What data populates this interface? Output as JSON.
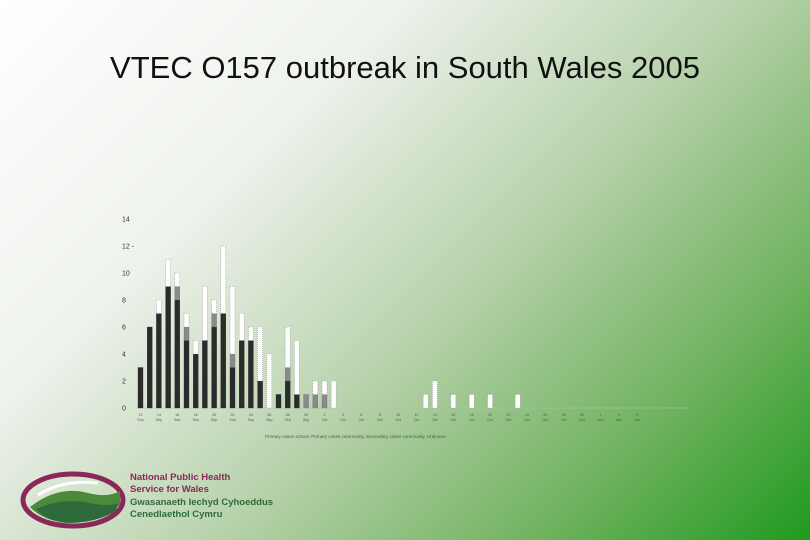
{
  "title": "VTEC O157 outbreak in South Wales 2005",
  "colors": {
    "primary": "#2b2b2b",
    "community": "#8a8a8a",
    "secondary": "#ffffff",
    "logo_maroon": "#8a2858",
    "logo_green": "#2f6b3a"
  },
  "chart_data": {
    "type": "bar",
    "stacked": true,
    "title": "",
    "xlabel": "",
    "ylabel": "",
    "ylim": [
      0,
      14
    ],
    "yticks": [
      "0",
      "2",
      "4",
      "6",
      "8",
      "10",
      "12 -",
      "14"
    ],
    "xtick_labels": [
      "12 Sep",
      "14 Sep",
      "16 Sep",
      "18 Sep",
      "20 Sep",
      "22 Sep",
      "24 Sep",
      "26 Sep",
      "28 Sep",
      "30 Sep",
      "2 Oct",
      "4 Oct",
      "6 Oct",
      "8 Oct",
      "10 Oct",
      "12 Oct",
      "14 Oct",
      "16 Oct",
      "18 Oct",
      "20 Oct",
      "22 Oct",
      "24 Oct",
      "26 Oct",
      "28 Oct",
      "30 Oct",
      "1 Nov",
      "3 Nov",
      "5 Nov"
    ],
    "series": [
      {
        "name": "Primary cases school",
        "values": [
          3,
          6,
          7,
          9,
          8,
          5,
          4,
          5,
          6,
          7,
          3,
          5,
          5,
          2,
          0,
          1,
          2,
          1,
          0,
          0,
          0,
          0,
          0,
          0,
          0,
          0,
          0,
          0,
          0,
          0,
          0,
          0,
          0,
          0,
          0,
          0,
          0,
          0,
          0,
          0,
          0,
          0,
          0,
          0,
          0,
          0,
          0,
          0,
          0,
          0,
          0,
          0,
          0,
          0,
          0,
          0
        ]
      },
      {
        "name": "Primary cases community",
        "values": [
          0,
          0,
          0,
          0,
          1,
          1,
          0,
          0,
          1,
          0,
          1,
          0,
          0,
          0,
          0,
          0,
          1,
          0,
          1,
          1,
          1,
          0,
          0,
          0,
          0,
          0,
          0,
          0,
          0,
          0,
          0,
          0,
          0,
          0,
          0,
          0,
          0,
          0,
          0,
          0,
          0,
          0,
          0,
          0,
          0,
          0,
          0,
          0,
          0,
          0,
          0,
          0,
          0,
          0,
          0,
          0
        ]
      },
      {
        "name": "Secondary cases community",
        "values": [
          0,
          0,
          1,
          2,
          1,
          1,
          1,
          4,
          1,
          5,
          5,
          2,
          1,
          4,
          4,
          0,
          3,
          4,
          0,
          1,
          1,
          2,
          0,
          0,
          0,
          0,
          0,
          0,
          0,
          0,
          0,
          1,
          2,
          0,
          1,
          0,
          1,
          0,
          1,
          0,
          0,
          1,
          0,
          0,
          0,
          0,
          0,
          0,
          0,
          0,
          0,
          0,
          0,
          0,
          0,
          0
        ]
      }
    ],
    "legend": "Primary cases school, Primary cases community, Secondary cases community, Unknown",
    "legend_position": "bottom"
  },
  "logo": {
    "line1": "National Public Health",
    "line2": "Service for Wales",
    "line3": "Gwasanaeth Iechyd Cyhoeddus",
    "line4": "Cenedlaethol Cymru"
  }
}
